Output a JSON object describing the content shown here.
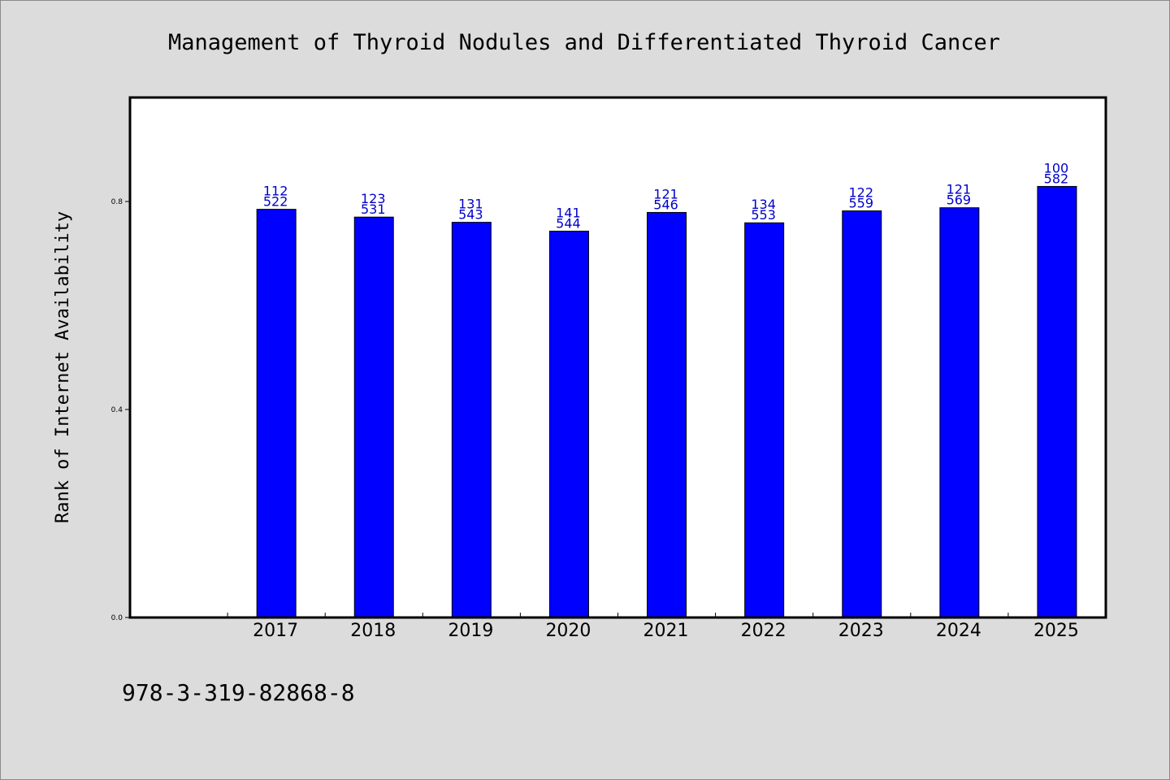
{
  "chart_data": {
    "type": "bar",
    "title": "Management of Thyroid Nodules and Differentiated Thyroid Cancer",
    "xlabel": "",
    "ylabel": "Rank of Internet Availability",
    "categories": [
      "2017",
      "2018",
      "2019",
      "2020",
      "2021",
      "2022",
      "2023",
      "2024",
      "2025"
    ],
    "values": [
      0.785,
      0.77,
      0.76,
      0.743,
      0.779,
      0.759,
      0.782,
      0.788,
      0.829
    ],
    "labels_top": [
      "112",
      "123",
      "131",
      "141",
      "121",
      "134",
      "122",
      "121",
      "100"
    ],
    "labels_bottom": [
      "522",
      "531",
      "543",
      "544",
      "546",
      "553",
      "559",
      "569",
      "582"
    ],
    "ylim": [
      0,
      1.0
    ],
    "yticks": [
      "0.0",
      "0.4",
      "0.8"
    ],
    "grid": false,
    "bar_color": "#0000ff",
    "label_color": "#0000cc"
  },
  "footer": {
    "isbn": "978-3-319-82868-8"
  }
}
